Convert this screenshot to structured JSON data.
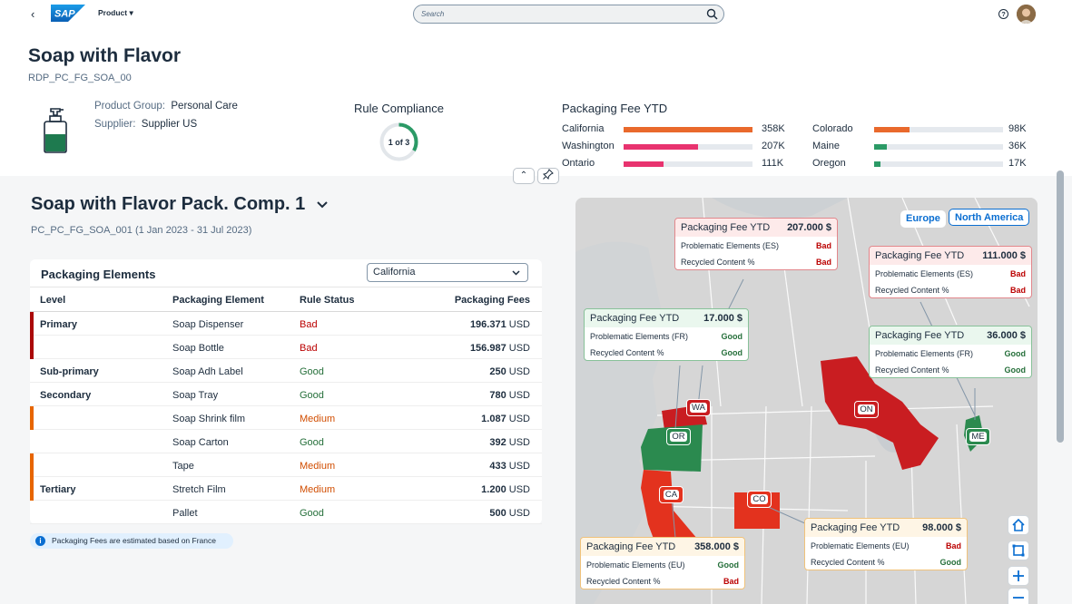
{
  "shell": {
    "logo_text": "SAP",
    "product_menu": "Product",
    "search_placeholder": "Search",
    "help_icon_label": "?"
  },
  "header": {
    "title": "Soap with Flavor",
    "subtitle": "RDP_PC_FG_SOA_00",
    "attributes": [
      {
        "label": "Product Group:",
        "value": "Personal Care"
      },
      {
        "label": "Supplier:",
        "value": "Supplier US"
      }
    ],
    "rule_compliance": {
      "title": "Rule Compliance",
      "text": "1 of 3",
      "fraction": 0.333
    },
    "packaging_fee": {
      "title": "Packaging Fee YTD",
      "left": [
        {
          "name": "California",
          "amount": "358K",
          "value": 358,
          "color": "#e9692c"
        },
        {
          "name": "Washington",
          "amount": "207K",
          "value": 207,
          "color": "#e8336f"
        },
        {
          "name": "Ontario",
          "amount": "111K",
          "value": 111,
          "color": "#e8336f"
        }
      ],
      "right": [
        {
          "name": "Colorado",
          "amount": "98K",
          "value": 98,
          "color": "#e9692c"
        },
        {
          "name": "Maine",
          "amount": "36K",
          "value": 36,
          "color": "#2b9a66"
        },
        {
          "name": "Oregon",
          "amount": "17K",
          "value": 17,
          "color": "#2b9a66"
        }
      ]
    }
  },
  "section": {
    "title": "Soap with Flavor Pack. Comp. 1",
    "subtitle": "PC_PC_FG_SOA_001 (1 Jan 2023 - 31 Jul 2023)"
  },
  "table": {
    "title": "Packaging Elements",
    "filter_value": "California",
    "columns": [
      "Level",
      "Packaging Element",
      "Rule Status",
      "Packaging Fees"
    ],
    "currency": "USD",
    "rows": [
      {
        "level": "Primary",
        "element": "Soap Dispenser",
        "status": "Bad",
        "fee": "196.371",
        "indicator": "#aa0808"
      },
      {
        "level": "",
        "element": "Soap Bottle",
        "status": "Bad",
        "fee": "156.987",
        "indicator": "#aa0808"
      },
      {
        "level": "Sub-primary",
        "element": "Soap Adh Label",
        "status": "Good",
        "fee": "250",
        "indicator": ""
      },
      {
        "level": "Secondary",
        "element": "Soap Tray",
        "status": "Good",
        "fee": "780",
        "indicator": ""
      },
      {
        "level": "",
        "element": "Soap Shrink film",
        "status": "Medium",
        "fee": "1.087",
        "indicator": "#e76500"
      },
      {
        "level": "",
        "element": "Soap Carton",
        "status": "Good",
        "fee": "392",
        "indicator": ""
      },
      {
        "level": "",
        "element": "Tape",
        "status": "Medium",
        "fee": "433",
        "indicator": "#e76500"
      },
      {
        "level": "Tertiary",
        "element": "Stretch Film",
        "status": "Medium",
        "fee": "1.200",
        "indicator": "#e76500"
      },
      {
        "level": "",
        "element": "Pallet",
        "status": "Good",
        "fee": "500",
        "indicator": ""
      }
    ],
    "info": "Packaging Fees are estimated based on France"
  },
  "map": {
    "regions": [
      "Europe",
      "North America"
    ],
    "tooltip_title": "Packaging Fee YTD",
    "pins": [
      "WA",
      "OR",
      "CA",
      "CO",
      "ON",
      "ME"
    ],
    "tooltips": [
      {
        "amount": "207.000 $",
        "tone": "red",
        "lines": [
          {
            "label": "Problematic Elements (ES)",
            "status": "Bad"
          },
          {
            "label": "Recycled Content %",
            "status": "Bad"
          }
        ]
      },
      {
        "amount": "111.000 $",
        "tone": "red",
        "lines": [
          {
            "label": "Problematic Elements (ES)",
            "status": "Bad"
          },
          {
            "label": "Recycled Content %",
            "status": "Bad"
          }
        ]
      },
      {
        "amount": "17.000 $",
        "tone": "green",
        "lines": [
          {
            "label": "Problematic Elements (FR)",
            "status": "Good"
          },
          {
            "label": "Recycled Content %",
            "status": "Good"
          }
        ]
      },
      {
        "amount": "36.000 $",
        "tone": "green",
        "lines": [
          {
            "label": "Problematic Elements (FR)",
            "status": "Good"
          },
          {
            "label": "Recycled Content %",
            "status": "Good"
          }
        ]
      },
      {
        "amount": "98.000 $",
        "tone": "amber",
        "lines": [
          {
            "label": "Problematic Elements (EU)",
            "status": "Bad"
          },
          {
            "label": "Recycled Content %",
            "status": "Good"
          }
        ]
      },
      {
        "amount": "358.000 $",
        "tone": "amber",
        "lines": [
          {
            "label": "Problematic Elements (EU)",
            "status": "Good"
          },
          {
            "label": "Recycled Content %",
            "status": "Bad"
          }
        ]
      }
    ],
    "controls": [
      "home-icon",
      "select-area-icon",
      "zoom-in-icon",
      "zoom-out-icon"
    ]
  }
}
